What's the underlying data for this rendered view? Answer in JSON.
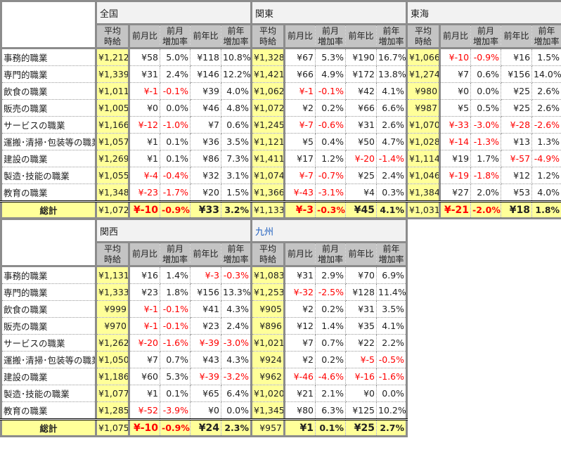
{
  "sub_headers": [
    "平均\n時給",
    "前月比",
    "前月\n増加率",
    "前年比",
    "前年\n増加率"
  ],
  "row_labels": [
    "事務的職業",
    "専門的職業",
    "飲食の職業",
    "販売の職業",
    "サービスの職業",
    "運搬･清掃･包装等の職業",
    "建設の職業",
    "製造･技能の職業",
    "教育の職業"
  ],
  "total_label": "総計",
  "colors": {
    "negative": "#ff0000",
    "highlight": "#ffff99",
    "header": "#c4c4c4"
  },
  "tables": [
    {
      "regions": [
        {
          "name": "全国",
          "rows": [
            [
              "¥1,212",
              "¥58",
              "5.0%",
              "¥118",
              "10.8%"
            ],
            [
              "¥1,339",
              "¥31",
              "2.4%",
              "¥146",
              "12.2%"
            ],
            [
              "¥1,011",
              "¥-1",
              "-0.1%",
              "¥39",
              "4.0%"
            ],
            [
              "¥1,005",
              "¥0",
              "0.0%",
              "¥46",
              "4.8%"
            ],
            [
              "¥1,166",
              "¥-12",
              "-1.0%",
              "¥7",
              "0.6%"
            ],
            [
              "¥1,057",
              "¥1",
              "0.1%",
              "¥36",
              "3.5%"
            ],
            [
              "¥1,269",
              "¥1",
              "0.1%",
              "¥86",
              "7.3%"
            ],
            [
              "¥1,055",
              "¥-4",
              "-0.4%",
              "¥32",
              "3.1%"
            ],
            [
              "¥1,348",
              "¥-23",
              "-1.7%",
              "¥20",
              "1.5%"
            ]
          ],
          "total": [
            "¥1,072",
            "¥-10",
            "-0.9%",
            "¥33",
            "3.2%"
          ]
        },
        {
          "name": "関東",
          "rows": [
            [
              "¥1,328",
              "¥67",
              "5.3%",
              "¥190",
              "16.7%"
            ],
            [
              "¥1,421",
              "¥66",
              "4.9%",
              "¥172",
              "13.8%"
            ],
            [
              "¥1,062",
              "¥-1",
              "-0.1%",
              "¥42",
              "4.1%"
            ],
            [
              "¥1,072",
              "¥2",
              "0.2%",
              "¥66",
              "6.6%"
            ],
            [
              "¥1,245",
              "¥-7",
              "-0.6%",
              "¥31",
              "2.6%"
            ],
            [
              "¥1,121",
              "¥5",
              "0.4%",
              "¥50",
              "4.7%"
            ],
            [
              "¥1,411",
              "¥17",
              "1.2%",
              "¥-20",
              "-1.4%"
            ],
            [
              "¥1,074",
              "¥-7",
              "-0.7%",
              "¥25",
              "2.4%"
            ],
            [
              "¥1,366",
              "¥-43",
              "-3.1%",
              "¥4",
              "0.3%"
            ]
          ],
          "total": [
            "¥1,133",
            "¥-3",
            "-0.3%",
            "¥45",
            "4.1%"
          ]
        },
        {
          "name": "東海",
          "rows": [
            [
              "¥1,066",
              "¥-10",
              "-0.9%",
              "¥16",
              "1.5%"
            ],
            [
              "¥1,274",
              "¥7",
              "0.6%",
              "¥156",
              "14.0%"
            ],
            [
              "¥980",
              "¥0",
              "0.0%",
              "¥25",
              "2.6%"
            ],
            [
              "¥987",
              "¥5",
              "0.5%",
              "¥25",
              "2.6%"
            ],
            [
              "¥1,070",
              "¥-33",
              "-3.0%",
              "¥-28",
              "-2.6%"
            ],
            [
              "¥1,028",
              "¥-14",
              "-1.3%",
              "¥13",
              "1.3%"
            ],
            [
              "¥1,114",
              "¥19",
              "1.7%",
              "¥-57",
              "-4.9%"
            ],
            [
              "¥1,046",
              "¥-19",
              "-1.8%",
              "¥12",
              "1.2%"
            ],
            [
              "¥1,384",
              "¥27",
              "2.0%",
              "¥53",
              "4.0%"
            ]
          ],
          "total": [
            "¥1,031",
            "¥-21",
            "-2.0%",
            "¥18",
            "1.8%"
          ]
        }
      ]
    },
    {
      "regions": [
        {
          "name": "関西",
          "rows": [
            [
              "¥1,131",
              "¥16",
              "1.4%",
              "¥-3",
              "-0.3%"
            ],
            [
              "¥1,333",
              "¥23",
              "1.8%",
              "¥156",
              "13.3%"
            ],
            [
              "¥999",
              "¥-1",
              "-0.1%",
              "¥41",
              "4.3%"
            ],
            [
              "¥970",
              "¥-1",
              "-0.1%",
              "¥23",
              "2.4%"
            ],
            [
              "¥1,262",
              "¥-20",
              "-1.6%",
              "¥-39",
              "-3.0%"
            ],
            [
              "¥1,050",
              "¥7",
              "0.7%",
              "¥43",
              "4.3%"
            ],
            [
              "¥1,186",
              "¥60",
              "5.3%",
              "¥-39",
              "-3.2%"
            ],
            [
              "¥1,077",
              "¥1",
              "0.1%",
              "¥65",
              "6.4%"
            ],
            [
              "¥1,285",
              "¥-52",
              "-3.9%",
              "¥0",
              "0.0%"
            ]
          ],
          "total": [
            "¥1,075",
            "¥-10",
            "-0.9%",
            "¥24",
            "2.3%"
          ]
        },
        {
          "name": "九州",
          "rows": [
            [
              "¥1,083",
              "¥31",
              "2.9%",
              "¥70",
              "6.9%"
            ],
            [
              "¥1,253",
              "¥-32",
              "-2.5%",
              "¥128",
              "11.4%"
            ],
            [
              "¥905",
              "¥2",
              "0.2%",
              "¥31",
              "3.5%"
            ],
            [
              "¥896",
              "¥12",
              "1.4%",
              "¥35",
              "4.1%"
            ],
            [
              "¥1,021",
              "¥7",
              "0.7%",
              "¥22",
              "2.2%"
            ],
            [
              "¥924",
              "¥2",
              "0.2%",
              "¥-5",
              "-0.5%"
            ],
            [
              "¥962",
              "¥-46",
              "-4.6%",
              "¥-16",
              "-1.6%"
            ],
            [
              "¥1,020",
              "¥21",
              "2.1%",
              "¥0",
              "0.0%"
            ],
            [
              "¥1,345",
              "¥80",
              "6.3%",
              "¥125",
              "10.2%"
            ]
          ],
          "total": [
            "¥957",
            "¥1",
            "0.1%",
            "¥25",
            "2.7%"
          ]
        }
      ]
    }
  ]
}
